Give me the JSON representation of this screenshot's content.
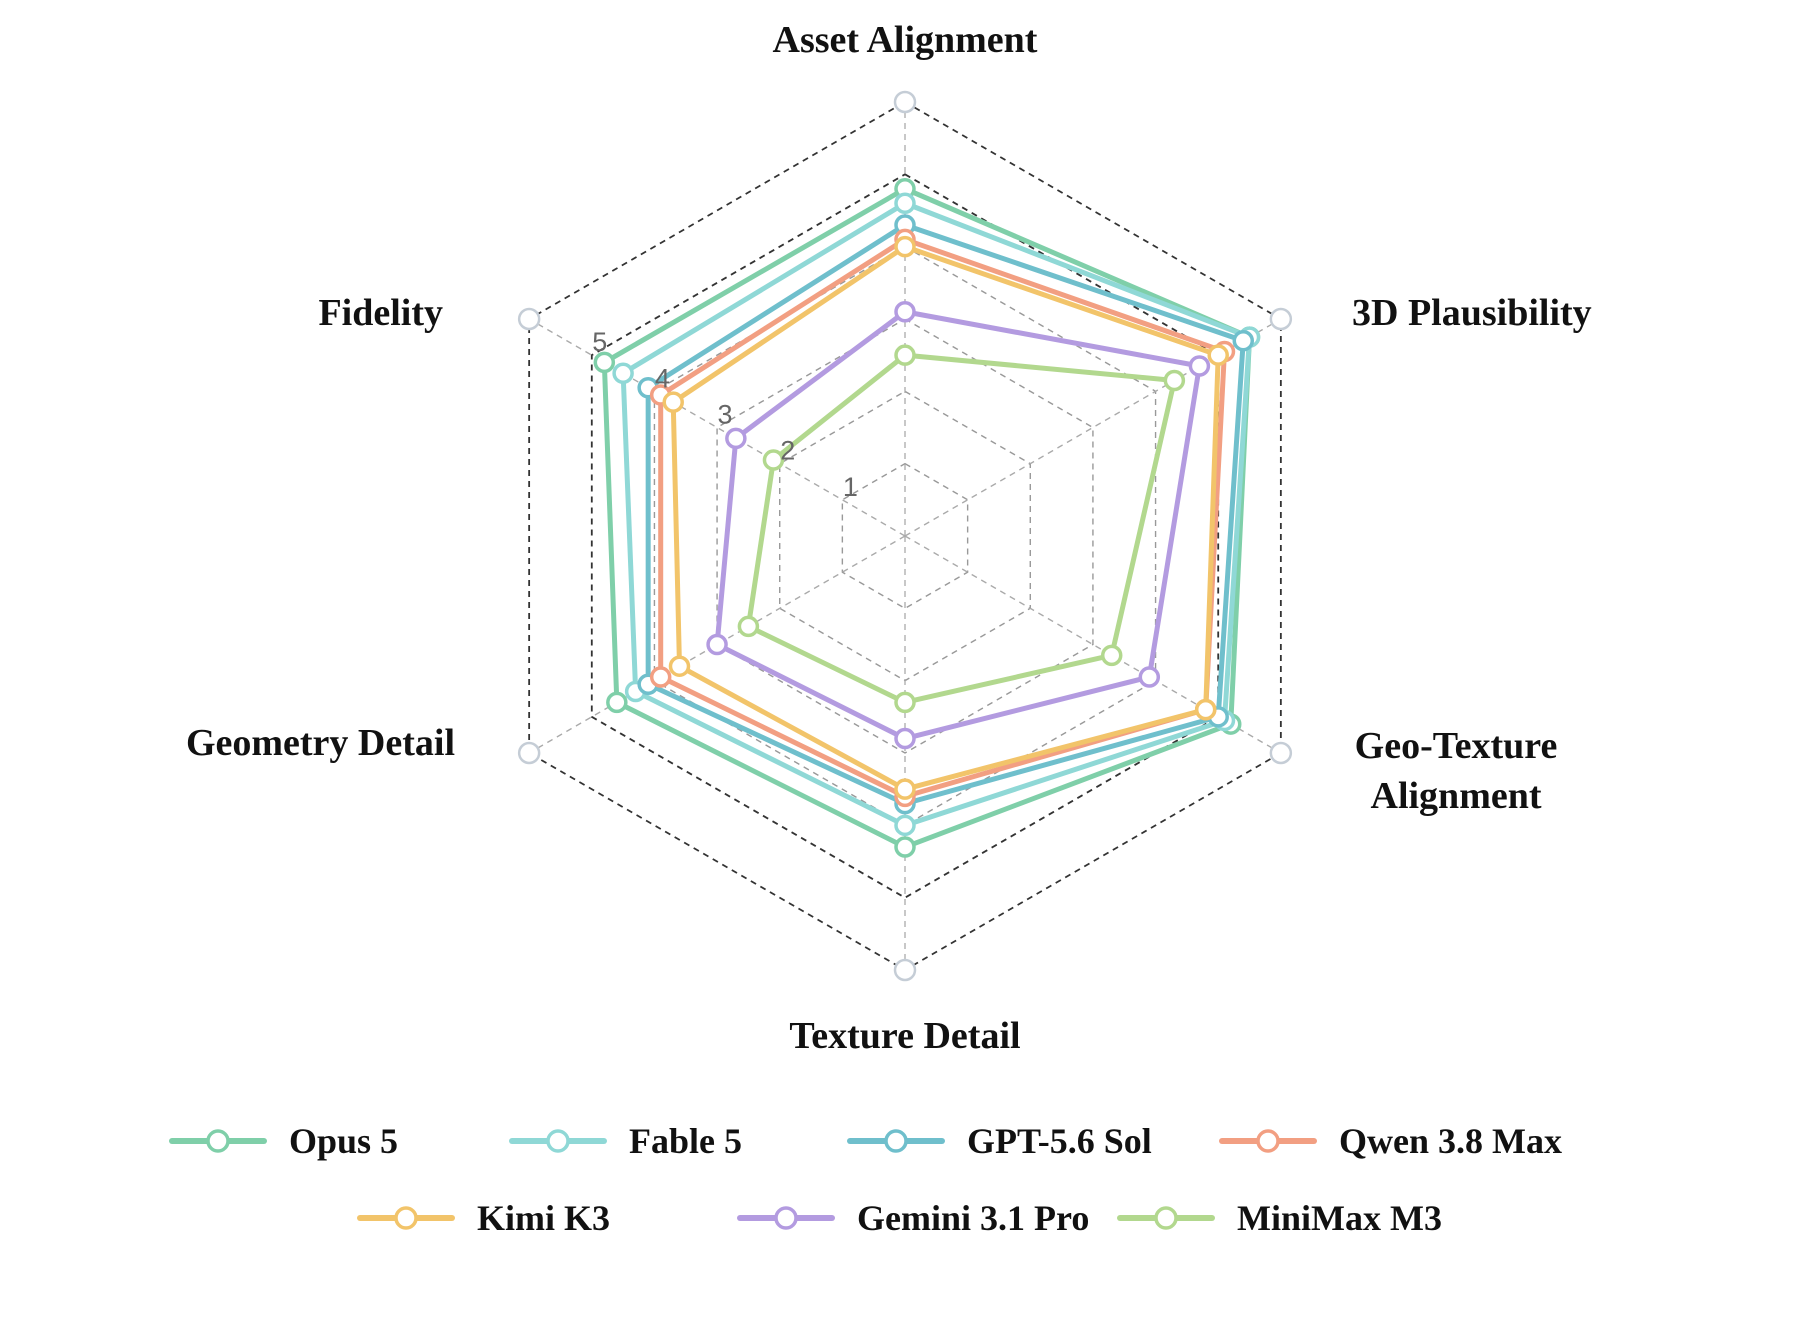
{
  "chart_data": {
    "type": "radar",
    "axes": [
      "Asset Alignment",
      "3D Plausibility",
      "Geo-Texture Alignment",
      "Texture Detail",
      "Geometry Detail",
      "Fidelity"
    ],
    "r_ticks": [
      1,
      2,
      3,
      4,
      5
    ],
    "rlim": [
      0,
      6
    ],
    "grid": true,
    "legend_position": "bottom",
    "series": [
      {
        "name": "Opus 5",
        "color": "#7fcfa9",
        "values": [
          4.8,
          5.5,
          5.2,
          4.3,
          4.6,
          4.8
        ]
      },
      {
        "name": "Fable 5",
        "color": "#8fd8d6",
        "values": [
          4.6,
          5.5,
          5.1,
          4.0,
          4.3,
          4.5
        ]
      },
      {
        "name": "GPT-5.6 Sol",
        "color": "#6fbfcc",
        "values": [
          4.3,
          5.4,
          5.0,
          3.7,
          4.1,
          4.1
        ]
      },
      {
        "name": "Qwen 3.8 Max",
        "color": "#f29f82",
        "values": [
          4.1,
          5.1,
          4.8,
          3.6,
          3.9,
          3.9
        ]
      },
      {
        "name": "Kimi K3",
        "color": "#f2c46a",
        "values": [
          4.0,
          5.0,
          4.8,
          3.5,
          3.6,
          3.7
        ]
      },
      {
        "name": "Gemini 3.1 Pro",
        "color": "#b39be0",
        "values": [
          3.1,
          4.7,
          3.9,
          2.8,
          3.0,
          2.7
        ]
      },
      {
        "name": "MiniMax M3",
        "color": "#b2d88e",
        "values": [
          2.5,
          4.3,
          3.3,
          2.3,
          2.5,
          2.1
        ]
      }
    ]
  }
}
